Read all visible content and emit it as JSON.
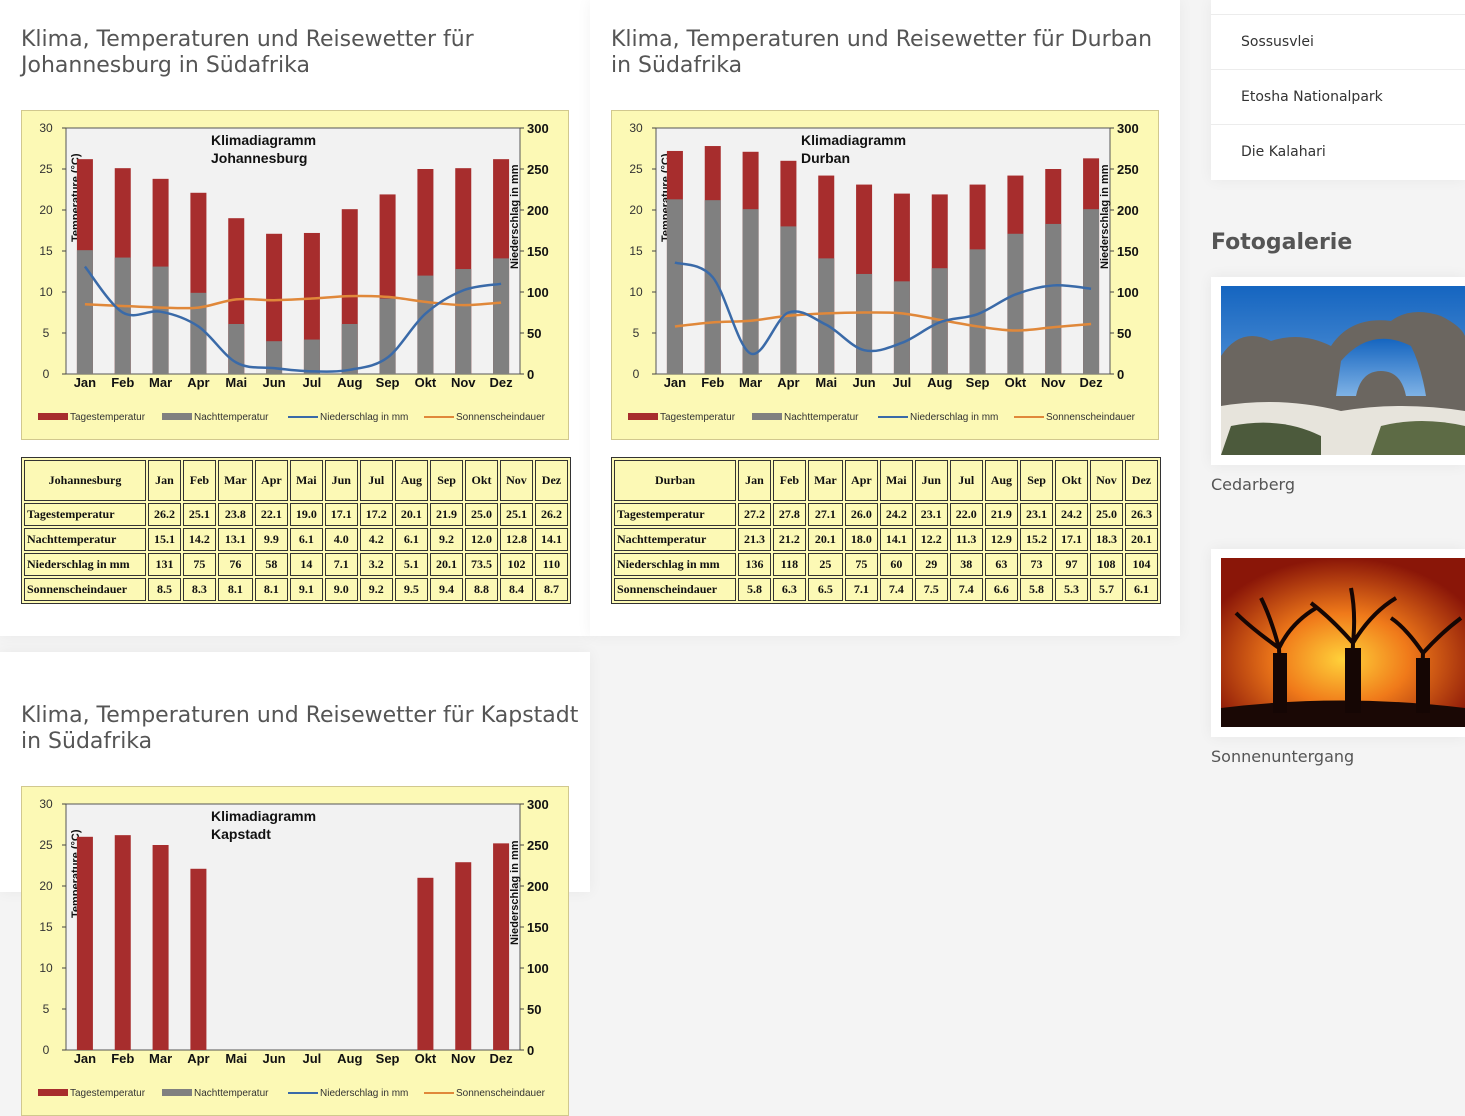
{
  "months": [
    "Jan",
    "Feb",
    "Mar",
    "Apr",
    "Mai",
    "Jun",
    "Jul",
    "Aug",
    "Sep",
    "Okt",
    "Nov",
    "Dez"
  ],
  "row_labels": [
    "Tagestemperatur",
    "Nachttemperatur",
    "Niederschlag in mm",
    "Sonnenscheindauer"
  ],
  "legend": {
    "day": "Tagestemperatur",
    "night": "Nachttemperatur",
    "rain": "Niederschlag in mm",
    "sun": "Sonnenscheindauer"
  },
  "axis": {
    "left_label": "Temperature (°C)",
    "right_label": "Niederschlag in mm",
    "left_ticks": [
      "0",
      "5",
      "10",
      "15",
      "20",
      "25",
      "30"
    ],
    "right_ticks": [
      "0",
      "50",
      "100",
      "150",
      "200",
      "250",
      "300"
    ]
  },
  "colors": {
    "day_bar": "#a72d2d",
    "night_bar": "#808080",
    "rain_line": "#3a6aa8",
    "sun_line": "#e0883a",
    "chart_bg": "#fcf9b5",
    "plot_bg": "#f2f2f2"
  },
  "sections": [
    {
      "title": "Klima, Temperaturen und Reisewetter für\nJohannesburg in Südafrika",
      "chart_title": "Klimadiagramm\nJohannesburg",
      "city": "Johannesburg",
      "day": [
        "26.2",
        "25.1",
        "23.8",
        "22.1",
        "19.0",
        "17.1",
        "17.2",
        "20.1",
        "21.9",
        "25.0",
        "25.1",
        "26.2"
      ],
      "night": [
        "15.1",
        "14.2",
        "13.1",
        "9.9",
        "6.1",
        "4.0",
        "4.2",
        "6.1",
        "9.2",
        "12.0",
        "12.8",
        "14.1"
      ],
      "rain": [
        "131",
        "75",
        "76",
        "58",
        "14",
        "7.1",
        "3.2",
        "5.1",
        "20.1",
        "73.5",
        "102",
        "110"
      ],
      "sun": [
        "8.5",
        "8.3",
        "8.1",
        "8.1",
        "9.1",
        "9.0",
        "9.2",
        "9.5",
        "9.4",
        "8.8",
        "8.4",
        "8.7"
      ]
    },
    {
      "title": "Klima, Temperaturen und Reisewetter für Durban\nin Südafrika",
      "chart_title": "Klimadiagramm\nDurban",
      "city": "Durban",
      "day": [
        "27.2",
        "27.8",
        "27.1",
        "26.0",
        "24.2",
        "23.1",
        "22.0",
        "21.9",
        "23.1",
        "24.2",
        "25.0",
        "26.3"
      ],
      "night": [
        "21.3",
        "21.2",
        "20.1",
        "18.0",
        "14.1",
        "12.2",
        "11.3",
        "12.9",
        "15.2",
        "17.1",
        "18.3",
        "20.1"
      ],
      "rain": [
        "136",
        "118",
        "25",
        "75",
        "60",
        "29",
        "38",
        "63",
        "73",
        "97",
        "108",
        "104"
      ],
      "sun": [
        "5.8",
        "6.3",
        "6.5",
        "7.1",
        "7.4",
        "7.5",
        "7.4",
        "6.6",
        "5.8",
        "5.3",
        "5.7",
        "6.1"
      ]
    },
    {
      "title": "Klima, Temperaturen und Reisewetter für Kapstadt\nin Südafrika",
      "chart_title": "Klimadiagramm\nKapstadt",
      "city": "Kapstadt",
      "day": [
        "26.0",
        "26.2",
        "25.0",
        "22.1",
        "",
        "",
        "",
        "",
        "",
        "21.0",
        "22.9",
        "25.2"
      ],
      "night": [],
      "rain": [],
      "sun": []
    }
  ],
  "chart_data": [
    {
      "type": "bar",
      "title": "Klimadiagramm Johannesburg",
      "categories": [
        "Jan",
        "Feb",
        "Mar",
        "Apr",
        "Mai",
        "Jun",
        "Jul",
        "Aug",
        "Sep",
        "Okt",
        "Nov",
        "Dez"
      ],
      "ylabel": "Temperature (°C)",
      "y2label": "Niederschlag in mm",
      "ylim": [
        0,
        30
      ],
      "y2lim": [
        0,
        300
      ],
      "grid": false,
      "legend": "bottom",
      "series": [
        {
          "name": "Tagestemperatur",
          "values": [
            26.2,
            25.1,
            23.8,
            22.1,
            19.0,
            17.1,
            17.2,
            20.1,
            21.9,
            25.0,
            25.1,
            26.2
          ]
        },
        {
          "name": "Nachttemperatur",
          "values": [
            15.1,
            14.2,
            13.1,
            9.9,
            6.1,
            4.0,
            4.2,
            6.1,
            9.2,
            12.0,
            12.8,
            14.1
          ]
        },
        {
          "name": "Niederschlag in mm",
          "values": [
            131,
            75,
            76,
            58,
            14,
            7.1,
            3.2,
            5.1,
            20.1,
            73.5,
            102,
            110
          ]
        },
        {
          "name": "Sonnenscheindauer",
          "values": [
            8.5,
            8.3,
            8.1,
            8.1,
            9.1,
            9.0,
            9.2,
            9.5,
            9.4,
            8.8,
            8.4,
            8.7
          ]
        }
      ]
    },
    {
      "type": "bar",
      "title": "Klimadiagramm Durban",
      "categories": [
        "Jan",
        "Feb",
        "Mar",
        "Apr",
        "Mai",
        "Jun",
        "Jul",
        "Aug",
        "Sep",
        "Okt",
        "Nov",
        "Dez"
      ],
      "ylabel": "Temperature (°C)",
      "y2label": "Niederschlag in mm",
      "ylim": [
        0,
        30
      ],
      "y2lim": [
        0,
        300
      ],
      "grid": false,
      "legend": "bottom",
      "series": [
        {
          "name": "Tagestemperatur",
          "values": [
            27.2,
            27.8,
            27.1,
            26.0,
            24.2,
            23.1,
            22.0,
            21.9,
            23.1,
            24.2,
            25.0,
            26.3
          ]
        },
        {
          "name": "Nachttemperatur",
          "values": [
            21.3,
            21.2,
            20.1,
            18.0,
            14.1,
            12.2,
            11.3,
            12.9,
            15.2,
            17.1,
            18.3,
            20.1
          ]
        },
        {
          "name": "Niederschlag in mm",
          "values": [
            136,
            118,
            25,
            75,
            60,
            29,
            38,
            63,
            73,
            97,
            108,
            104
          ]
        },
        {
          "name": "Sonnenscheindauer",
          "values": [
            5.8,
            6.3,
            6.5,
            7.1,
            7.4,
            7.5,
            7.4,
            6.6,
            5.8,
            5.3,
            5.7,
            6.1
          ]
        }
      ]
    },
    {
      "type": "bar",
      "title": "Klimadiagramm Kapstadt",
      "categories": [
        "Jan",
        "Feb",
        "Mar",
        "Apr",
        "Mai",
        "Jun",
        "Jul",
        "Aug",
        "Sep",
        "Okt",
        "Nov",
        "Dez"
      ],
      "ylabel": "Temperature (°C)",
      "y2label": "Niederschlag in mm",
      "ylim": [
        0,
        30
      ],
      "y2lim": [
        0,
        300
      ],
      "series": [
        {
          "name": "Tagestemperatur",
          "values": [
            26.0,
            26.2,
            25.0,
            22.1,
            null,
            null,
            null,
            null,
            null,
            21.0,
            22.9,
            25.2
          ]
        }
      ]
    }
  ],
  "sidebar": {
    "items": [
      "Sossusvlei",
      "Etosha Nationalpark",
      "Die Kalahari"
    ],
    "gallery_heading": "Fotogalerie",
    "photos": [
      "Cedarberg",
      "Sonnenuntergang"
    ]
  }
}
